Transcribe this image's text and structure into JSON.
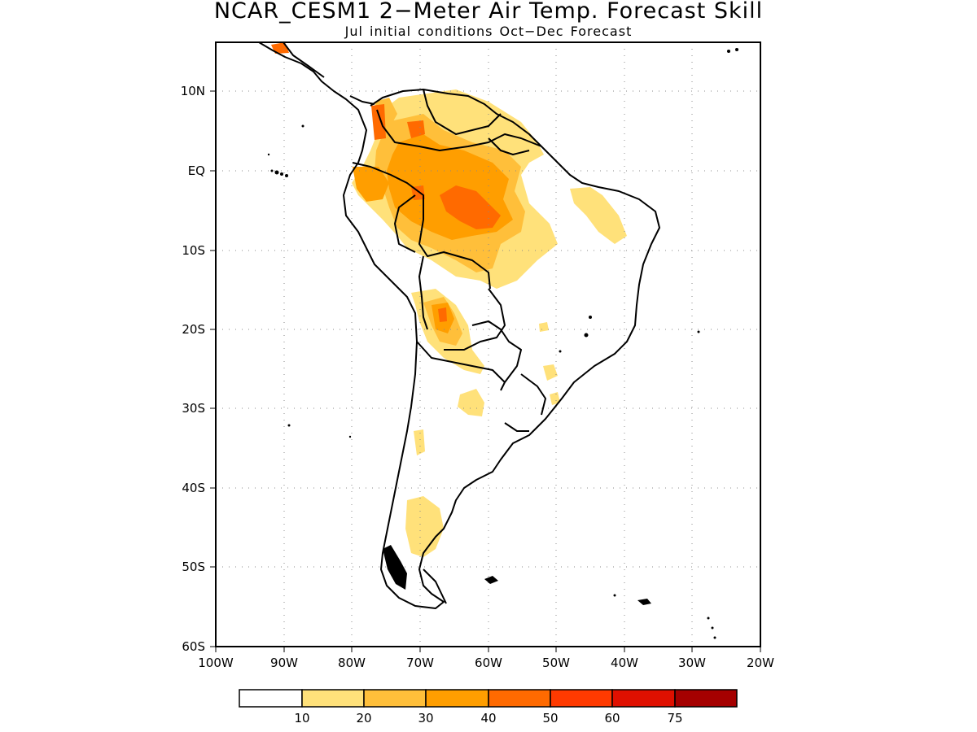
{
  "title": "NCAR_CESM1 2−Meter Air Temp. Forecast Skill",
  "subtitle": "Jul initial conditions   Oct−Dec Forecast",
  "map": {
    "lon_range": [
      -100,
      -20
    ],
    "lat_range": [
      -60,
      16
    ],
    "gridlines": "dotted",
    "lat_labels": [
      "10N",
      "EQ",
      "10S",
      "20S",
      "30S",
      "40S",
      "50S",
      "60S"
    ],
    "lon_labels": [
      "100W",
      "90W",
      "80W",
      "70W",
      "60W",
      "50W",
      "40W",
      "30W",
      "20W"
    ]
  },
  "colorbar": {
    "labels": [
      "10",
      "20",
      "30",
      "40",
      "50",
      "60",
      "75"
    ],
    "colors": [
      "#ffffff",
      "#ffe17a",
      "#ffbf3a",
      "#ff9e00",
      "#ff6a00",
      "#ff3a00",
      "#df1000",
      "#a50000"
    ]
  }
}
